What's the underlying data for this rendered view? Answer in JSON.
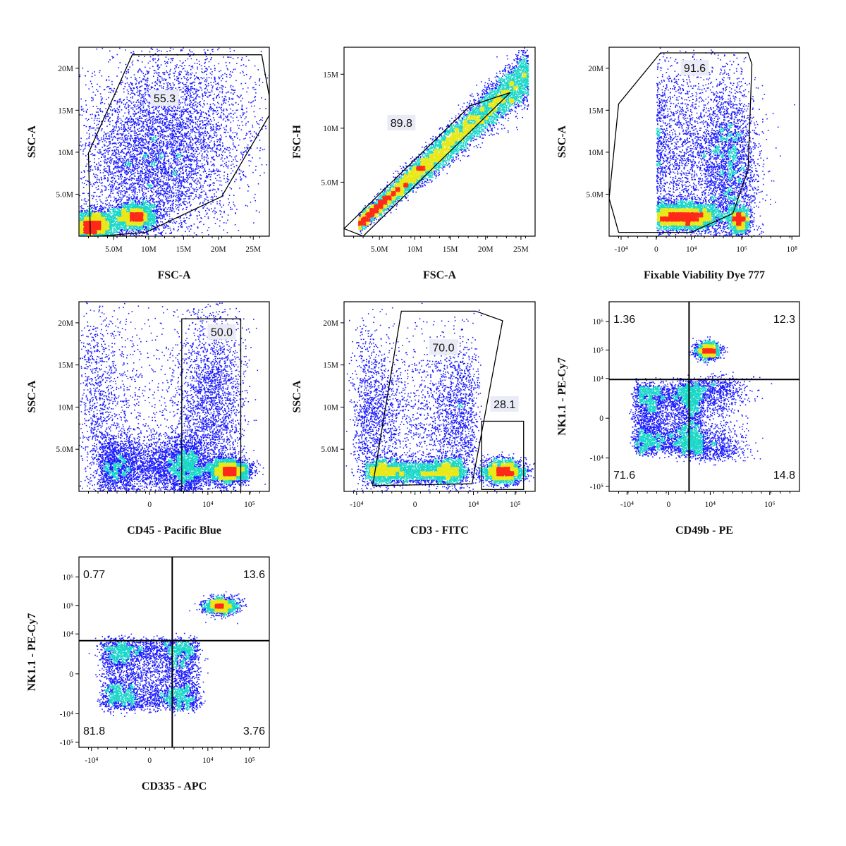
{
  "chart_data": [
    {
      "type": "scatter",
      "id": "p1",
      "xlabel": "FSC-A",
      "ylabel": "SSC-A",
      "x_scale": "linear",
      "y_scale": "linear",
      "xlim": [
        0,
        27300000
      ],
      "ylim": [
        0,
        22500000
      ],
      "x_ticks": [
        {
          "v": 5000000,
          "label": "5.0M"
        },
        {
          "v": 10000000,
          "label": "10M"
        },
        {
          "v": 15000000,
          "label": "15M"
        },
        {
          "v": 20000000,
          "label": "20M"
        },
        {
          "v": 25000000,
          "label": "25M"
        }
      ],
      "y_ticks": [
        {
          "v": 5000000,
          "label": "5.0M"
        },
        {
          "v": 10000000,
          "label": "10M"
        },
        {
          "v": 15000000,
          "label": "15M"
        },
        {
          "v": 20000000,
          "label": "20M"
        }
      ],
      "gates": [
        {
          "kind": "polygon",
          "value": "55.3"
        }
      ],
      "populations": [
        {
          "x": 2000000,
          "y": 1200000,
          "sx": 1500000,
          "sy": 900000,
          "n": 3500
        },
        {
          "x": 8000000,
          "y": 2400000,
          "sx": 1500000,
          "sy": 800000,
          "n": 2500
        },
        {
          "x": 10000000,
          "y": 8000000,
          "sx": 5000000,
          "sy": 5000000,
          "n": 4000
        },
        {
          "x": 15000000,
          "y": 14000000,
          "sx": 6000000,
          "sy": 5000000,
          "n": 2500
        }
      ]
    },
    {
      "type": "scatter",
      "id": "p2",
      "xlabel": "FSC-A",
      "ylabel": "FSC-H",
      "x_scale": "linear",
      "y_scale": "linear",
      "xlim": [
        0,
        27000000
      ],
      "ylim": [
        0,
        17500000
      ],
      "x_ticks": [
        {
          "v": 5000000,
          "label": "5.0M"
        },
        {
          "v": 10000000,
          "label": "10M"
        },
        {
          "v": 15000000,
          "label": "15M"
        },
        {
          "v": 20000000,
          "label": "20M"
        },
        {
          "v": 25000000,
          "label": "25M"
        }
      ],
      "y_ticks": [
        {
          "v": 5000000,
          "label": "5.0M"
        },
        {
          "v": 10000000,
          "label": "10M"
        },
        {
          "v": 15000000,
          "label": "15M"
        }
      ],
      "gates": [
        {
          "kind": "polygon",
          "value": "89.8"
        }
      ],
      "populations": [
        {
          "diag": true,
          "x0": 2000000,
          "x1": 26000000,
          "n": 9000
        }
      ]
    },
    {
      "type": "scatter",
      "id": "p3",
      "xlabel": "Fixable Viability Dye 777",
      "ylabel": "SSC-A",
      "x_scale": "biexponential",
      "y_scale": "linear",
      "xlim": [
        -30000,
        200000000
      ],
      "ylim": [
        0,
        22500000
      ],
      "x_ticks": [
        {
          "v": -10000,
          "label": "-10⁴"
        },
        {
          "v": 0,
          "label": "0"
        },
        {
          "v": 10000,
          "label": "10⁴"
        },
        {
          "v": 1000000,
          "label": "10⁶"
        },
        {
          "v": 100000000,
          "label": "10⁸"
        }
      ],
      "y_ticks": [
        {
          "v": 5000000,
          "label": "5.0M"
        },
        {
          "v": 10000000,
          "label": "10M"
        },
        {
          "v": 15000000,
          "label": "15M"
        },
        {
          "v": 20000000,
          "label": "20M"
        }
      ],
      "gates": [
        {
          "kind": "polygon",
          "value": "91.6"
        }
      ],
      "populations": [
        {
          "x": 5000,
          "y": 2400000,
          "sx": 0.7,
          "sy": 800000,
          "n": 4500
        },
        {
          "x": 300000,
          "y": 8000000,
          "sx": 0.6,
          "sy": 5000000,
          "n": 3000
        },
        {
          "x": 800000,
          "y": 2000000,
          "sx": 0.2,
          "sy": 800000,
          "n": 1200
        },
        {
          "x": 3000,
          "y": 10000000,
          "sx": 1.0,
          "sy": 6000000,
          "n": 2000
        }
      ]
    },
    {
      "type": "scatter",
      "id": "p4",
      "xlabel": "CD45 - Pacific Blue",
      "ylabel": "SSC-A",
      "x_scale": "biexponential",
      "y_scale": "linear",
      "xlim": [
        -20000,
        300000
      ],
      "ylim": [
        0,
        22500000
      ],
      "x_ticks": [
        {
          "v": 0,
          "label": "0"
        },
        {
          "v": 10000,
          "label": "10⁴"
        },
        {
          "v": 100000,
          "label": "10⁵"
        }
      ],
      "y_ticks": [
        {
          "v": 5000000,
          "label": "5.0M"
        },
        {
          "v": 10000000,
          "label": "10M"
        },
        {
          "v": 15000000,
          "label": "15M"
        },
        {
          "v": 20000000,
          "label": "20M"
        }
      ],
      "gates": [
        {
          "kind": "rect",
          "value": "50.0"
        }
      ],
      "populations": [
        {
          "x": 500,
          "y": 3000000,
          "sx": 3000,
          "sy": 1800000,
          "n": 4500
        },
        {
          "x": 30000,
          "y": 2500000,
          "sx": 0.25,
          "sy": 700000,
          "n": 3500
        },
        {
          "x": 20000,
          "y": 10000000,
          "sx": 0.3,
          "sy": 6000000,
          "n": 1500
        },
        {
          "x": 0,
          "y": 10000000,
          "sx": 8000,
          "sy": 6000000,
          "n": 2500
        }
      ]
    },
    {
      "type": "scatter",
      "id": "p5",
      "xlabel": "CD3 - FITC",
      "ylabel": "SSC-A",
      "x_scale": "biexponential",
      "y_scale": "linear",
      "xlim": [
        -20000,
        300000
      ],
      "ylim": [
        0,
        22500000
      ],
      "x_ticks": [
        {
          "v": -10000,
          "label": "-10⁴"
        },
        {
          "v": 0,
          "label": "0"
        },
        {
          "v": 10000,
          "label": "10⁴"
        },
        {
          "v": 100000,
          "label": "10⁵"
        }
      ],
      "y_ticks": [
        {
          "v": 5000000,
          "label": "5.0M"
        },
        {
          "v": 10000000,
          "label": "10M"
        },
        {
          "v": 15000000,
          "label": "15M"
        },
        {
          "v": 20000000,
          "label": "20M"
        }
      ],
      "gates": [
        {
          "kind": "polygon",
          "value": "70.0"
        },
        {
          "kind": "rect",
          "value": "28.1"
        }
      ],
      "populations": [
        {
          "x": 0,
          "y": 2400000,
          "sx": 2500,
          "sy": 700000,
          "n": 4000
        },
        {
          "x": 50000,
          "y": 2400000,
          "sx": 0.25,
          "sy": 700000,
          "n": 2500
        },
        {
          "x": 0,
          "y": 9000000,
          "sx": 5000,
          "sy": 5000000,
          "n": 3500
        }
      ]
    },
    {
      "type": "scatter",
      "id": "p6",
      "xlabel": "CD49b - PE",
      "ylabel": "NK1.1 - PE-Cy7",
      "x_scale": "biexponential",
      "y_scale": "biexponential",
      "xlim": [
        -40000,
        10000000
      ],
      "ylim": [
        -150000,
        5000000
      ],
      "x_ticks": [
        {
          "v": -10000,
          "label": "-10⁴"
        },
        {
          "v": 0,
          "label": "0"
        },
        {
          "v": 10000,
          "label": "10⁴"
        },
        {
          "v": 1000000,
          "label": "10⁶"
        }
      ],
      "y_ticks": [
        {
          "v": -100000,
          "label": "-10⁵"
        },
        {
          "v": -10000,
          "label": "-10⁴"
        },
        {
          "v": 0,
          "label": "0"
        },
        {
          "v": 10000,
          "label": "10⁴"
        },
        {
          "v": 100000,
          "label": "10⁵"
        },
        {
          "v": 1000000,
          "label": "10⁶"
        }
      ],
      "quadrant_split": {
        "x": 2000,
        "y": 30000
      },
      "quadrants": {
        "top_left": "1.36",
        "top_right": "12.3",
        "bottom_left": "71.6",
        "bottom_right": "14.8"
      },
      "populations": [
        {
          "x": 0,
          "y": 0,
          "sx": 2500,
          "sy": 3000,
          "n": 4500
        },
        {
          "x": 8000,
          "y": 100000,
          "sx": 0.2,
          "sy": 0.15,
          "n": 1500
        },
        {
          "x": 10000,
          "y": 0,
          "sx": 0.6,
          "sy": 5000,
          "n": 1800
        }
      ]
    },
    {
      "type": "scatter",
      "id": "p7",
      "xlabel": "CD335 - APC",
      "ylabel": "NK1.1 - PE-Cy7",
      "x_scale": "biexponential",
      "y_scale": "biexponential",
      "xlim": [
        -20000,
        300000
      ],
      "ylim": [
        -150000,
        5000000
      ],
      "x_ticks": [
        {
          "v": -10000,
          "label": "-10⁴"
        },
        {
          "v": 0,
          "label": "0"
        },
        {
          "v": 10000,
          "label": "10⁴"
        },
        {
          "v": 100000,
          "label": "10⁵"
        }
      ],
      "y_ticks": [
        {
          "v": -100000,
          "label": "-10⁵"
        },
        {
          "v": -10000,
          "label": "-10⁴"
        },
        {
          "v": 0,
          "label": "0"
        },
        {
          "v": 10000,
          "label": "10⁴"
        },
        {
          "v": 100000,
          "label": "10⁵"
        },
        {
          "v": 1000000,
          "label": "10⁶"
        }
      ],
      "quadrant_split": {
        "x": 4000,
        "y": 30000
      },
      "quadrants": {
        "top_left": "0.77",
        "top_right": "13.6",
        "bottom_left": "81.8",
        "bottom_right": "3.76"
      },
      "populations": [
        {
          "x": 0,
          "y": 0,
          "sx": 2500,
          "sy": 3000,
          "n": 5000
        },
        {
          "x": 20000,
          "y": 100000,
          "sx": 0.2,
          "sy": 0.15,
          "n": 1500
        }
      ]
    }
  ],
  "colors": {
    "density_low": "#1a1aff",
    "density_mid": "#19d7c8",
    "density_high": "#e8e81a",
    "density_peak": "#ff2a1a",
    "frame": "#000000"
  }
}
